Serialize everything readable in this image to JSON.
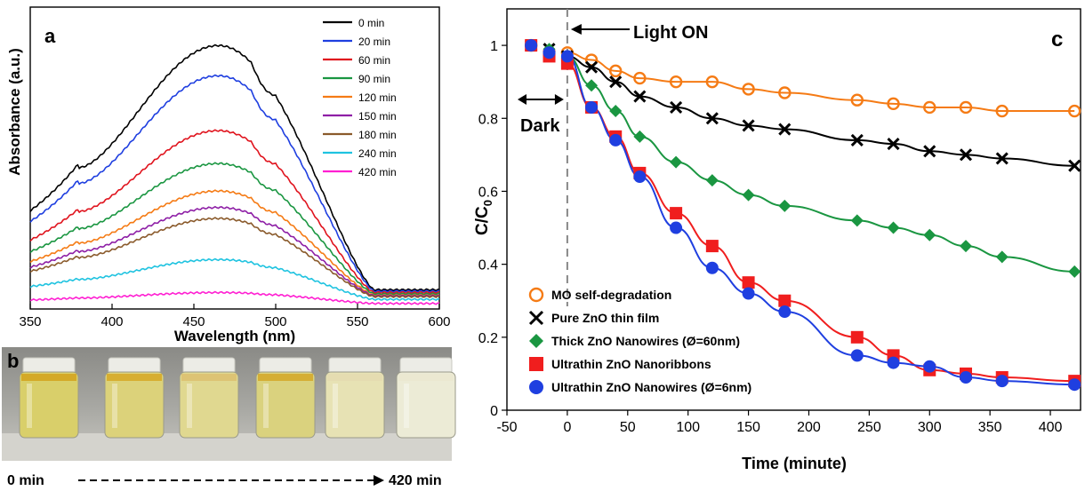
{
  "chart_data": [
    {
      "panel_label": "a",
      "type": "line",
      "xlabel": "Wavelength (nm)",
      "ylabel": "Absorbance (a.u.)",
      "xlim": [
        350,
        600
      ],
      "xticks": [
        "350",
        "400",
        "450",
        "500",
        "550",
        "600"
      ],
      "ylim": [
        0,
        1.1
      ],
      "grid": false,
      "legend_position": "top-right",
      "peak_wavelength": 465,
      "series": [
        {
          "name": "0 min",
          "color": "#000000",
          "peak": 0.96,
          "baseline": 0.07
        },
        {
          "name": "20 min",
          "color": "#1f3fe0",
          "peak": 0.85,
          "baseline": 0.065
        },
        {
          "name": "60 min",
          "color": "#e0141e",
          "peak": 0.65,
          "baseline": 0.06
        },
        {
          "name": "90 min",
          "color": "#1a9641",
          "peak": 0.53,
          "baseline": 0.055
        },
        {
          "name": "120 min",
          "color": "#f57b15",
          "peak": 0.43,
          "baseline": 0.05
        },
        {
          "name": "150 min",
          "color": "#8e1fa6",
          "peak": 0.37,
          "baseline": 0.048
        },
        {
          "name": "180 min",
          "color": "#8a5a2b",
          "peak": 0.33,
          "baseline": 0.045
        },
        {
          "name": "240 min",
          "color": "#1fc3e0",
          "peak": 0.18,
          "baseline": 0.035
        },
        {
          "name": "420 min",
          "color": "#ff1fd2",
          "peak": 0.06,
          "baseline": 0.02
        }
      ]
    },
    {
      "panel_label": "c",
      "type": "scatter",
      "xlabel": "Time (minute)",
      "ylabel": "c/c0",
      "xlim": [
        -50,
        425
      ],
      "ylim": [
        0,
        1.1
      ],
      "xticks": [
        "-50",
        "0",
        "50",
        "100",
        "150",
        "200",
        "250",
        "300",
        "350",
        "400"
      ],
      "yticks": [
        "0",
        "0.2",
        "0.4",
        "0.6",
        "0.8",
        "1"
      ],
      "grid": false,
      "legend_position": "bottom-left",
      "light_on_x": 0,
      "annotations": {
        "light": "Light ON",
        "dark": "Dark"
      },
      "series": [
        {
          "name": "MO self-degradation",
          "marker": "circle-open",
          "color": "#f57b15",
          "x": [
            -30,
            0,
            20,
            40,
            60,
            90,
            120,
            150,
            180,
            240,
            270,
            300,
            330,
            360,
            420
          ],
          "y": [
            1.0,
            0.98,
            0.96,
            0.93,
            0.91,
            0.9,
            0.9,
            0.88,
            0.87,
            0.85,
            0.84,
            0.83,
            0.83,
            0.82,
            0.82
          ]
        },
        {
          "name": "Pure ZnO thin film",
          "marker": "x",
          "color": "#000000",
          "x": [
            -30,
            -15,
            0,
            20,
            40,
            60,
            90,
            120,
            150,
            180,
            240,
            270,
            300,
            330,
            360,
            420
          ],
          "y": [
            1.0,
            0.99,
            0.97,
            0.94,
            0.9,
            0.86,
            0.83,
            0.8,
            0.78,
            0.77,
            0.74,
            0.73,
            0.71,
            0.7,
            0.69,
            0.67
          ]
        },
        {
          "name": "Thick ZnO Nanowires (Ø=60nm)",
          "marker": "diamond",
          "color": "#1a9641",
          "x": [
            -30,
            -15,
            0,
            20,
            40,
            60,
            90,
            120,
            150,
            180,
            240,
            270,
            300,
            330,
            360,
            420
          ],
          "y": [
            1.0,
            0.99,
            0.97,
            0.89,
            0.82,
            0.75,
            0.68,
            0.63,
            0.59,
            0.56,
            0.52,
            0.5,
            0.48,
            0.45,
            0.42,
            0.38
          ]
        },
        {
          "name": "Ultrathin ZnO Nanoribbons",
          "marker": "square",
          "color": "#f01e1e",
          "x": [
            -30,
            -15,
            0,
            20,
            40,
            60,
            90,
            120,
            150,
            180,
            240,
            270,
            300,
            330,
            360,
            420
          ],
          "y": [
            1.0,
            0.97,
            0.95,
            0.83,
            0.75,
            0.65,
            0.54,
            0.45,
            0.35,
            0.3,
            0.2,
            0.15,
            0.11,
            0.1,
            0.09,
            0.08
          ]
        },
        {
          "name": "Ultrathin ZnO Nanowires (Ø=6nm)",
          "marker": "circle",
          "color": "#1f3fe0",
          "x": [
            -30,
            -15,
            0,
            20,
            40,
            60,
            90,
            120,
            150,
            180,
            240,
            270,
            300,
            330,
            360,
            420
          ],
          "y": [
            1.0,
            0.98,
            0.97,
            0.83,
            0.74,
            0.64,
            0.5,
            0.39,
            0.32,
            0.27,
            0.15,
            0.13,
            0.12,
            0.09,
            0.08,
            0.07
          ]
        }
      ]
    }
  ],
  "photo": {
    "panel_label": "b",
    "start_label": "0 min",
    "end_label": "420 min",
    "vial_count": 6,
    "liquid_colors": [
      "#d9cf6a",
      "#dcd27a",
      "#e0d890",
      "#dad27e",
      "#e7e2b4",
      "#ecebd6"
    ],
    "band_colors": [
      "#d2a21c",
      "#d6a824",
      "#dcc070",
      "#d4a828",
      "#e4dab0",
      "#ebe7d0"
    ]
  }
}
